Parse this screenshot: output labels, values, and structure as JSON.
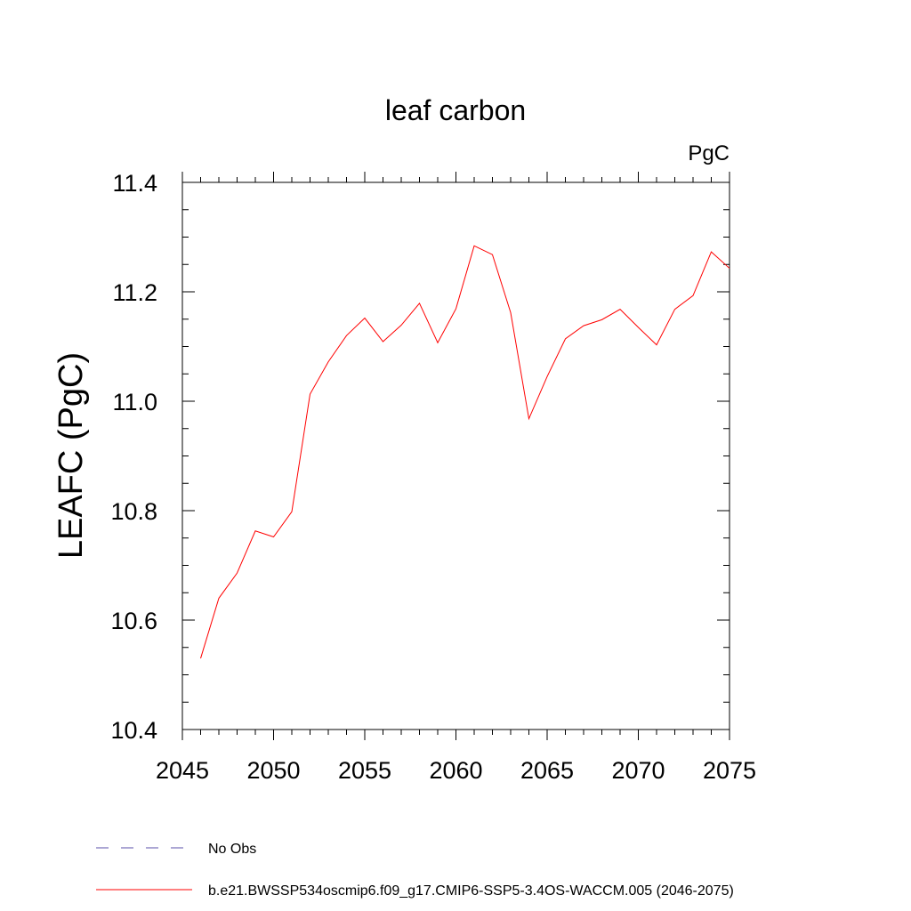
{
  "chart_data": {
    "type": "line",
    "title": "leaf carbon",
    "units": "PgC",
    "ylabel": "LEAFC  (PgC)",
    "xlabel": "",
    "xlim": [
      2045,
      2075
    ],
    "ylim": [
      10.4,
      11.4
    ],
    "x_ticks": [
      2045,
      2050,
      2055,
      2060,
      2065,
      2070,
      2075
    ],
    "x_tick_labels": [
      "2045",
      "2050",
      "2055",
      "2060",
      "2065",
      "2070",
      "2075"
    ],
    "y_ticks": [
      10.4,
      10.6,
      10.8,
      11.0,
      11.2,
      11.4
    ],
    "y_tick_labels": [
      "10.4",
      "10.6",
      "10.8",
      "11.0",
      "11.2",
      "11.4"
    ],
    "grid": false,
    "legend_position": "bottom-left",
    "series": [
      {
        "name": "No Obs",
        "color": "#5a4fa8",
        "style": "dashed",
        "x": [],
        "values": []
      },
      {
        "name": "b.e21.BWSSP534oscmip6.f09_g17.CMIP6-SSP5-3.4OS-WACCM.005 (2046-2075)",
        "color": "#ff0000",
        "style": "solid",
        "x": [
          2046,
          2047,
          2048,
          2049,
          2050,
          2051,
          2052,
          2053,
          2054,
          2055,
          2056,
          2057,
          2058,
          2059,
          2060,
          2061,
          2062,
          2063,
          2064,
          2065,
          2066,
          2067,
          2068,
          2069,
          2070,
          2071,
          2072,
          2073,
          2074,
          2075
        ],
        "values": [
          10.53,
          10.64,
          10.686,
          10.763,
          10.752,
          10.798,
          11.013,
          11.072,
          11.12,
          11.152,
          11.109,
          11.139,
          11.179,
          11.107,
          11.169,
          11.284,
          11.268,
          11.162,
          10.968,
          11.045,
          11.114,
          11.138,
          11.149,
          11.168,
          11.135,
          11.103,
          11.168,
          11.193,
          11.273,
          11.243
        ]
      }
    ]
  }
}
